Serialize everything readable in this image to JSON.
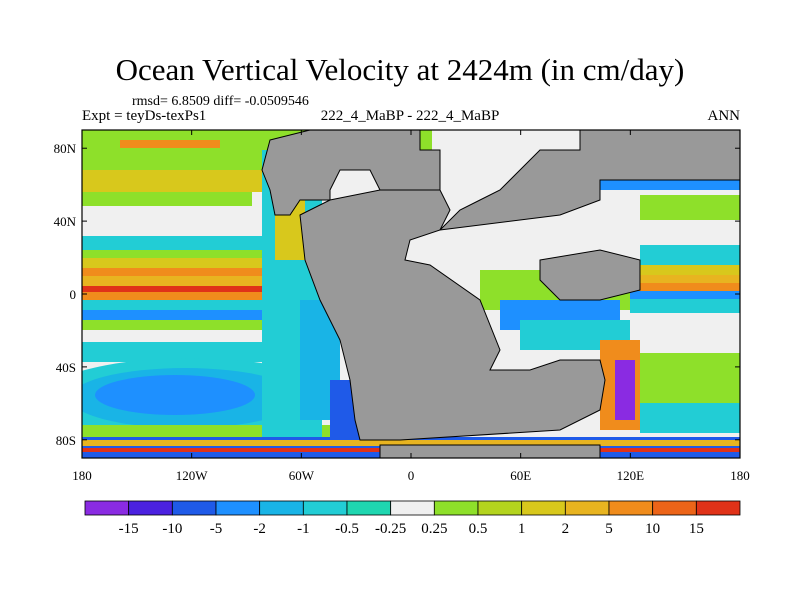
{
  "title": "Ocean Vertical Velocity at 2424m (in cm/day)",
  "stats": "rmsd= 6.8509 diff= -0.0509546",
  "expt": "Expt = teyDs-texPs1",
  "case": "222_4_MaBP - 222_4_MaBP",
  "season": "ANN",
  "map": {
    "lat_ticks": [
      "80N",
      "40N",
      "0",
      "40S",
      "80S"
    ],
    "lat_values": [
      80,
      40,
      0,
      -40,
      -80
    ],
    "lon_ticks": [
      "180",
      "120W",
      "60W",
      "0",
      "60E",
      "120E",
      "180"
    ],
    "lon_values": [
      -180,
      -120,
      -60,
      0,
      60,
      120,
      180
    ],
    "land_color": "#999999"
  },
  "colorbar": {
    "colors": [
      "#8a2be2",
      "#4b21e0",
      "#1f5ae8",
      "#1e90ff",
      "#19b4e6",
      "#22cdd5",
      "#1fd6b0",
      "#f0f0f0",
      "#8ee02a",
      "#b4d41e",
      "#d8c81c",
      "#e8b420",
      "#f08c1c",
      "#ec6418",
      "#e03218"
    ],
    "labels": [
      "-15",
      "-10",
      "-5",
      "-2",
      "-1",
      "-0.5",
      "-0.25",
      "0.25",
      "0.5",
      "1",
      "2",
      "5",
      "10",
      "15"
    ]
  }
}
